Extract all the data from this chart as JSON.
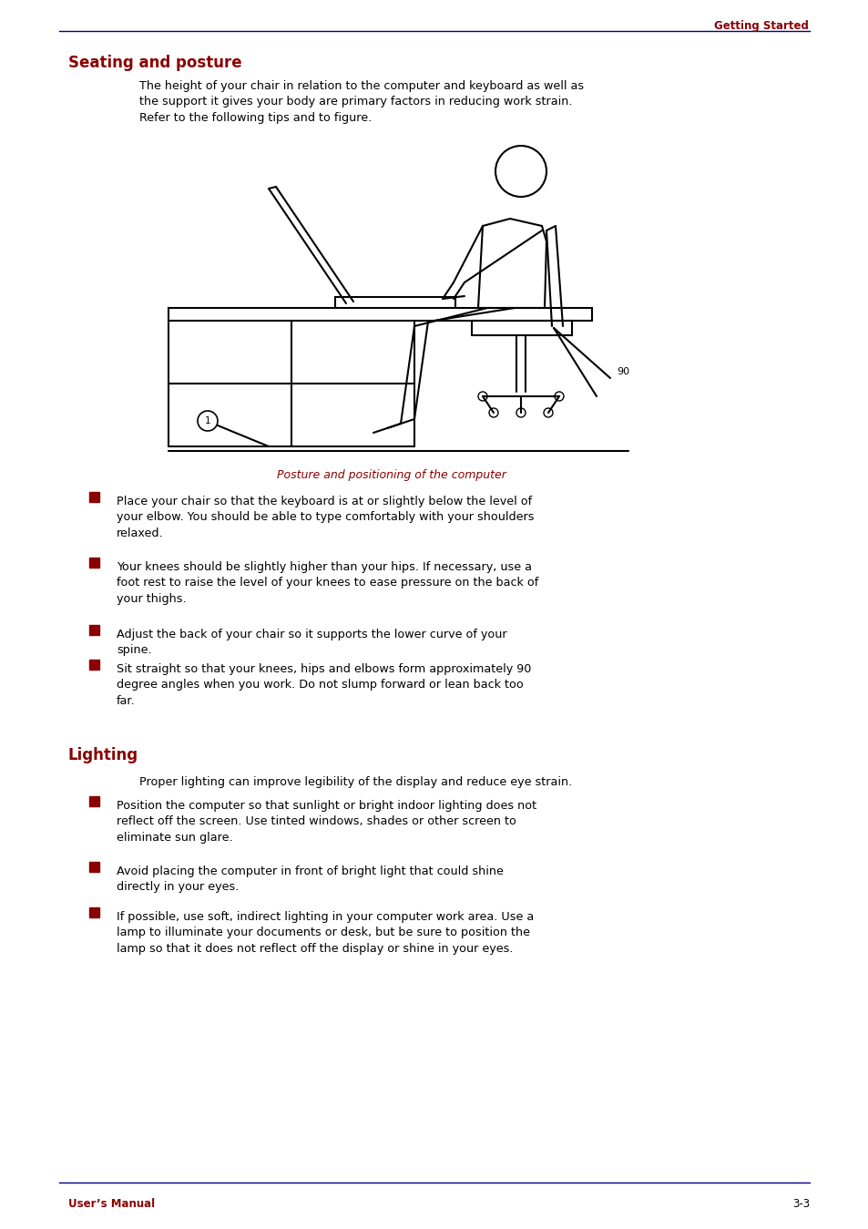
{
  "bg_color": "#ffffff",
  "dark_red": "#8B0000",
  "navy": "#000080",
  "black": "#000000",
  "header_text": "Getting Started",
  "section1_title": "Seating and posture",
  "section1_intro": "The height of your chair in relation to the computer and keyboard as well as\nthe support it gives your body are primary factors in reducing work strain.\nRefer to the following tips and to figure.",
  "fig_caption": "Posture and positioning of the computer",
  "bullets_section1": [
    "Place your chair so that the keyboard is at or slightly below the level of\nyour elbow. You should be able to type comfortably with your shoulders\nrelaxed.",
    "Your knees should be slightly higher than your hips. If necessary, use a\nfoot rest to raise the level of your knees to ease pressure on the back of\nyour thighs.",
    "Adjust the back of your chair so it supports the lower curve of your\nspine.",
    "Sit straight so that your knees, hips and elbows form approximately 90\ndegree angles when you work. Do not slump forward or lean back too\nfar."
  ],
  "section2_title": "Lighting",
  "section2_intro": "Proper lighting can improve legibility of the display and reduce eye strain.",
  "bullets_section2": [
    "Position the computer so that sunlight or bright indoor lighting does not\nreflect off the screen. Use tinted windows, shades or other screen to\neliminate sun glare.",
    "Avoid placing the computer in front of bright light that could shine\ndirectly in your eyes.",
    "If possible, use soft, indirect lighting in your computer work area. Use a\nlamp to illuminate your documents or desk, but be sure to position the\nlamp so that it does not reflect off the display or shine in your eyes."
  ],
  "footer_left": "User’s Manual",
  "footer_right": "3-3"
}
